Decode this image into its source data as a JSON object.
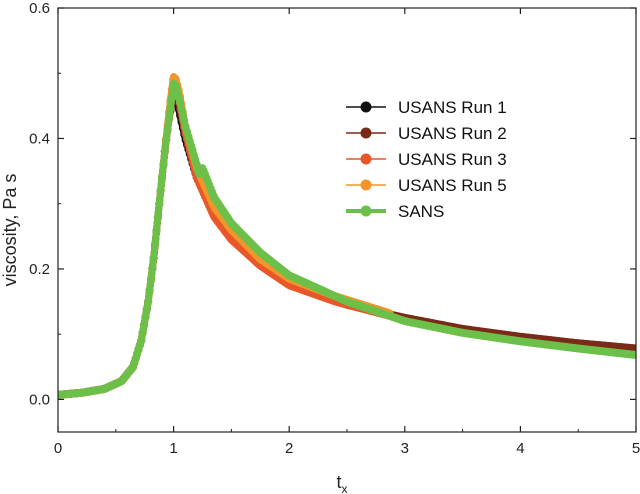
{
  "chart_data": {
    "type": "line",
    "title": "",
    "xlabel": "t",
    "xlabel_sub": "x",
    "ylabel": "viscosity, Pa s",
    "xlim": [
      0,
      5
    ],
    "ylim": [
      -0.05,
      0.6
    ],
    "xticks": [
      0,
      1,
      2,
      3,
      4,
      5
    ],
    "yticks": [
      0.0,
      0.2,
      0.4,
      0.6
    ],
    "xtick_labels": [
      "0",
      "1",
      "2",
      "3",
      "4",
      "5"
    ],
    "ytick_labels": [
      "0.0",
      "0.2",
      "0.4",
      "0.6"
    ],
    "grid": false,
    "legend_position": "upper-right",
    "series": [
      {
        "name": "USANS Run 1",
        "color": "#111111",
        "x": [
          0,
          0.2,
          0.4,
          0.55,
          0.65,
          0.72,
          0.78,
          0.83,
          0.87,
          0.9,
          0.93,
          0.96,
          0.98,
          1.0,
          1.02,
          1.05,
          1.1,
          1.2,
          1.35,
          1.5,
          1.7
        ],
        "y": [
          0.007,
          0.01,
          0.016,
          0.028,
          0.05,
          0.09,
          0.15,
          0.22,
          0.29,
          0.34,
          0.39,
          0.43,
          0.45,
          0.47,
          0.465,
          0.44,
          0.4,
          0.34,
          0.29,
          0.25,
          0.22
        ]
      },
      {
        "name": "USANS Run 2",
        "color": "#7a2a18",
        "x": [
          0,
          0.2,
          0.4,
          0.55,
          0.65,
          0.72,
          0.78,
          0.83,
          0.87,
          0.9,
          0.93,
          0.96,
          0.98,
          1.0,
          1.02,
          1.05,
          1.1,
          1.2,
          1.35,
          1.5,
          1.75,
          2.0,
          2.5,
          3.0,
          3.5,
          4.0,
          4.5,
          5.0
        ],
        "y": [
          0.007,
          0.01,
          0.016,
          0.028,
          0.05,
          0.09,
          0.15,
          0.22,
          0.29,
          0.34,
          0.39,
          0.43,
          0.45,
          0.48,
          0.475,
          0.45,
          0.41,
          0.35,
          0.29,
          0.25,
          0.21,
          0.18,
          0.145,
          0.125,
          0.108,
          0.096,
          0.086,
          0.078
        ]
      },
      {
        "name": "USANS Run 3",
        "color": "#e8562a",
        "x": [
          0,
          0.2,
          0.4,
          0.55,
          0.65,
          0.72,
          0.78,
          0.83,
          0.87,
          0.9,
          0.93,
          0.96,
          0.98,
          1.0,
          1.02,
          1.05,
          1.1,
          1.2,
          1.35,
          1.5,
          1.75,
          2.0,
          2.4,
          2.87
        ],
        "y": [
          0.007,
          0.01,
          0.016,
          0.028,
          0.05,
          0.09,
          0.15,
          0.22,
          0.29,
          0.34,
          0.39,
          0.43,
          0.46,
          0.49,
          0.485,
          0.46,
          0.41,
          0.34,
          0.28,
          0.245,
          0.205,
          0.175,
          0.15,
          0.128
        ]
      },
      {
        "name": "USANS Run 5",
        "color": "#f0962a",
        "x": [
          0,
          0.2,
          0.4,
          0.55,
          0.65,
          0.72,
          0.78,
          0.83,
          0.87,
          0.9,
          0.93,
          0.96,
          0.98,
          1.0,
          1.02,
          1.05,
          1.1,
          1.2,
          1.35,
          1.5,
          1.75,
          2.0,
          2.4,
          2.87
        ],
        "y": [
          0.007,
          0.01,
          0.016,
          0.028,
          0.05,
          0.09,
          0.15,
          0.22,
          0.29,
          0.34,
          0.39,
          0.44,
          0.47,
          0.495,
          0.49,
          0.47,
          0.42,
          0.355,
          0.295,
          0.26,
          0.215,
          0.185,
          0.158,
          0.132
        ]
      },
      {
        "name": "SANS",
        "color": "#6cc04a",
        "x": [
          0,
          0.2,
          0.4,
          0.55,
          0.65,
          0.72,
          0.78,
          0.83,
          0.87,
          0.9,
          0.93,
          0.96,
          0.98,
          1.0,
          1.02,
          1.05,
          1.1,
          1.2,
          1.22,
          1.25,
          1.35,
          1.5,
          1.75,
          2.0,
          2.5,
          3.0,
          3.5,
          4.0,
          4.5,
          5.0
        ],
        "y": [
          0.007,
          0.01,
          0.016,
          0.028,
          0.05,
          0.09,
          0.15,
          0.22,
          0.29,
          0.34,
          0.39,
          0.43,
          0.455,
          0.485,
          0.48,
          0.46,
          0.42,
          0.36,
          0.345,
          0.355,
          0.31,
          0.27,
          0.225,
          0.19,
          0.15,
          0.12,
          0.102,
          0.089,
          0.078,
          0.068
        ]
      }
    ]
  }
}
